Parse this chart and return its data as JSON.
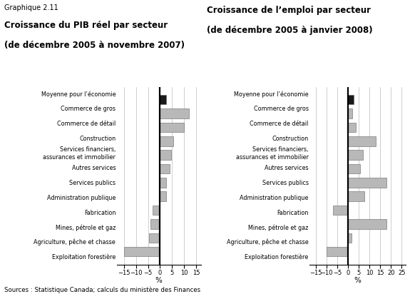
{
  "categories": [
    "Moyenne pour l’économie",
    "Commerce de gros",
    "Commerce de détail",
    "Construction",
    "Services financiers,\nassurances et immobilier",
    "Autres services",
    "Services publics",
    "Administration publique",
    "Fabrication",
    "Mines, pétrole et gaz",
    "Agriculture, pêche et chasse",
    "Exploitation forestière"
  ],
  "gdp_values": [
    2.5,
    12.0,
    10.0,
    5.5,
    4.5,
    4.0,
    2.5,
    2.5,
    -3.0,
    -4.0,
    -4.5,
    -15.0
  ],
  "emp_values": [
    2.5,
    2.0,
    3.5,
    13.0,
    7.0,
    5.5,
    18.0,
    7.5,
    -7.0,
    18.0,
    1.5,
    -10.0
  ],
  "gdp_xlim": [
    -18,
    17
  ],
  "emp_xlim": [
    -18,
    27
  ],
  "gdp_xticks": [
    -15,
    -10,
    -5,
    0,
    5,
    10,
    15
  ],
  "emp_xticks": [
    -15,
    -10,
    -5,
    0,
    5,
    10,
    15,
    20,
    25
  ],
  "title1_line1": "Graphique 2.11",
  "title1_line2": "Croissance du PIB réel par secteur",
  "title1_line3": "(de décembre 2005 à novembre 2007)",
  "title2_line1": "Croissance de l’emploi par secteur",
  "title2_line2": "(de décembre 2005 à janvier 2008)",
  "xlabel": "%",
  "source": "Sources : Statistique Canada; calculs du ministère des Finances",
  "bar_color_gray": "#b8b8b8",
  "bar_color_black": "#1a1a1a",
  "bar_edge_color": "#666666",
  "background_color": "#ffffff"
}
